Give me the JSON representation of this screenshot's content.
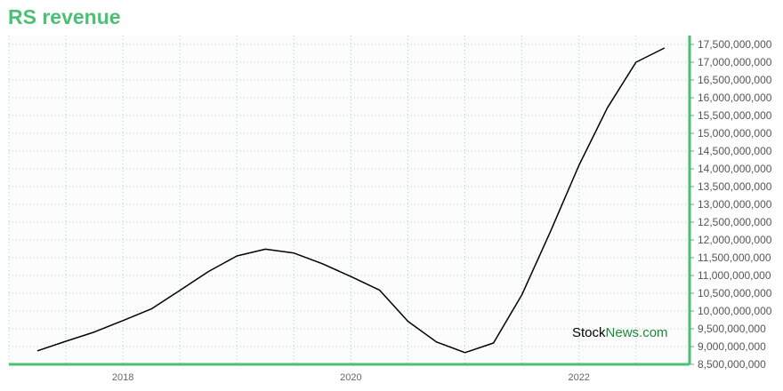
{
  "title": "RS revenue",
  "watermark": {
    "part1": "Stock",
    "part2": "News.com",
    "color1": "#000000",
    "color2": "#1a8a3a"
  },
  "colors": {
    "accent": "#4bbf73",
    "line": "#000000",
    "grid": "#9fd8c4",
    "plot_bg": "#fcfcfc"
  },
  "chart_data": {
    "type": "line",
    "title": "RS revenue",
    "xlabel": "",
    "ylabel": "",
    "grid": true,
    "xlim": [
      2017.0,
      2022.97
    ],
    "ylim": [
      8500000000,
      17750000000
    ],
    "x_ticks": [
      {
        "value": 2018,
        "label": "2018"
      },
      {
        "value": 2020,
        "label": "2020"
      },
      {
        "value": 2022,
        "label": "2022"
      }
    ],
    "y_ticks": [
      {
        "value": 8500000000,
        "label": "8,500,000,000"
      },
      {
        "value": 9000000000,
        "label": "9,000,000,000"
      },
      {
        "value": 9500000000,
        "label": "9,500,000,000"
      },
      {
        "value": 10000000000,
        "label": "10,000,000,000"
      },
      {
        "value": 10500000000,
        "label": "10,500,000,000"
      },
      {
        "value": 11000000000,
        "label": "11,000,000,000"
      },
      {
        "value": 11500000000,
        "label": "11,500,000,000"
      },
      {
        "value": 12000000000,
        "label": "12,000,000,000"
      },
      {
        "value": 12500000000,
        "label": "12,500,000,000"
      },
      {
        "value": 13000000000,
        "label": "13,000,000,000"
      },
      {
        "value": 13500000000,
        "label": "13,500,000,000"
      },
      {
        "value": 14000000000,
        "label": "14,000,000,000"
      },
      {
        "value": 14500000000,
        "label": "14,500,000,000"
      },
      {
        "value": 15000000000,
        "label": "15,000,000,000"
      },
      {
        "value": 15500000000,
        "label": "15,500,000,000"
      },
      {
        "value": 16000000000,
        "label": "16,000,000,000"
      },
      {
        "value": 16500000000,
        "label": "16,500,000,000"
      },
      {
        "value": 17000000000,
        "label": "17,000,000,000"
      },
      {
        "value": 17500000000,
        "label": "17,500,000,000"
      }
    ],
    "series": [
      {
        "x": [
          2017.25,
          2017.5,
          2017.75,
          2018.0,
          2018.25,
          2018.5,
          2018.75,
          2019.0,
          2019.25,
          2019.5,
          2019.75,
          2020.0,
          2020.25,
          2020.5,
          2020.75,
          2021.0,
          2021.25,
          2021.5,
          2021.75,
          2022.0,
          2022.25,
          2022.5,
          2022.75
        ],
        "values": [
          8880000000,
          9150000000,
          9410000000,
          9730000000,
          10060000000,
          10580000000,
          11110000000,
          11550000000,
          11740000000,
          11630000000,
          11330000000,
          10970000000,
          10590000000,
          9710000000,
          9130000000,
          8830000000,
          9100000000,
          10460000000,
          12240000000,
          14100000000,
          15720000000,
          17000000000,
          17400000000
        ]
      }
    ]
  }
}
